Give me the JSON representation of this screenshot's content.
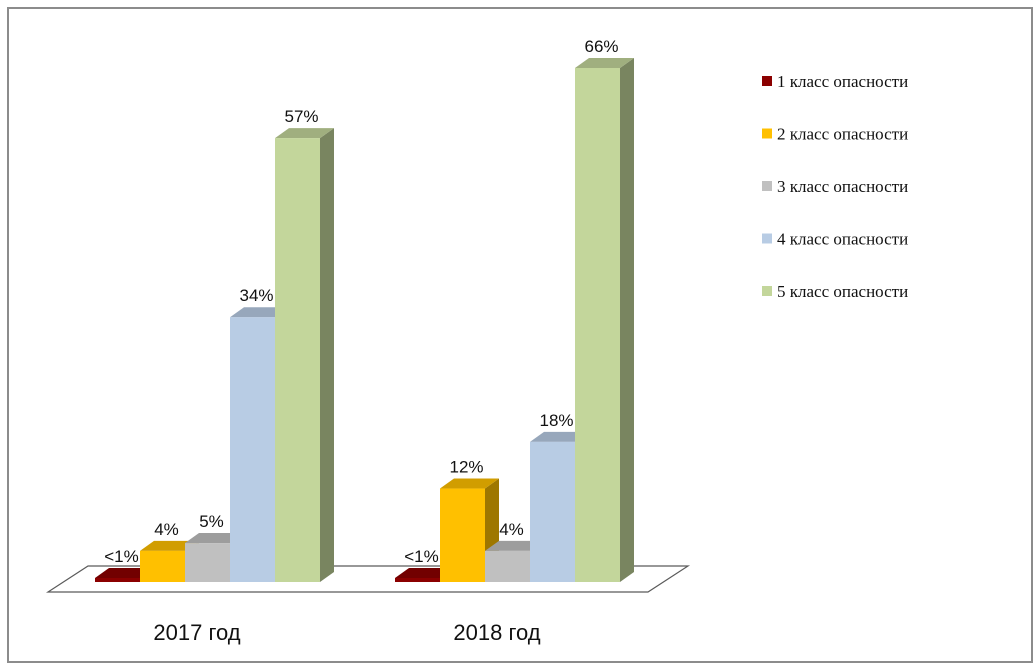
{
  "chart_data": {
    "type": "bar",
    "categories": [
      "2017 год",
      "2018 год"
    ],
    "series": [
      {
        "name": "1 класс опасности",
        "values": [
          0.5,
          0.5
        ],
        "labels": [
          "<1%",
          "<1%"
        ],
        "color": "#8b0000"
      },
      {
        "name": "2 класс опасности",
        "values": [
          4,
          12
        ],
        "labels": [
          "4%",
          "12%"
        ],
        "color": "#ffc000"
      },
      {
        "name": "3 класс опасности",
        "values": [
          5,
          4
        ],
        "labels": [
          "5%",
          "4%"
        ],
        "color": "#c0c0c0"
      },
      {
        "name": "4 класс опасности",
        "values": [
          34,
          18
        ],
        "labels": [
          "34%",
          "18%"
        ],
        "color": "#b8cce4"
      },
      {
        "name": "5 класс опасности",
        "values": [
          57,
          66
        ],
        "labels": [
          "57%",
          "66%"
        ],
        "color": "#c3d69b"
      }
    ],
    "ylim": [
      0,
      66
    ],
    "grid": false,
    "legend": "right",
    "style": "3d-column"
  }
}
